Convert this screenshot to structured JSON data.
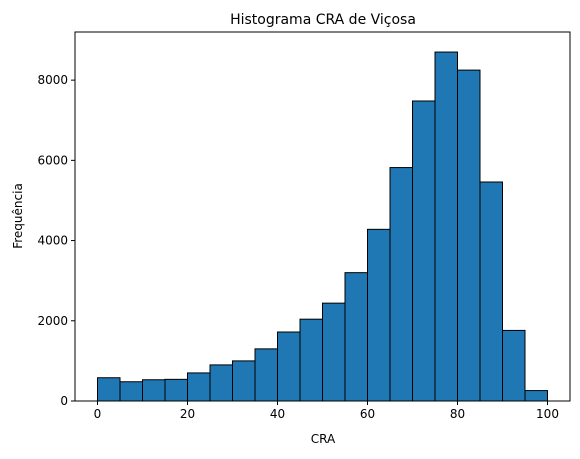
{
  "chart_data": {
    "type": "bar",
    "title": "Histograma CRA de Viçosa",
    "xlabel": "CRA",
    "ylabel": "Frequência",
    "bin_edges": [
      0,
      5,
      10,
      15,
      20,
      25,
      30,
      35,
      40,
      45,
      50,
      55,
      60,
      65,
      70,
      75,
      80,
      85,
      90,
      95,
      100
    ],
    "values": [
      580,
      480,
      530,
      540,
      700,
      900,
      1000,
      1300,
      1720,
      2040,
      2440,
      3200,
      4280,
      5820,
      7480,
      8700,
      8250,
      5460,
      1760,
      260
    ],
    "xlim": [
      -5,
      105
    ],
    "ylim": [
      0,
      9200
    ],
    "xticks": [
      0,
      20,
      40,
      60,
      80,
      100
    ],
    "yticks": [
      0,
      2000,
      4000,
      6000,
      8000
    ],
    "grid": false,
    "legend": "none",
    "colors": {
      "bar_fill": "#1f77b4",
      "bar_edge": "#000000",
      "axis": "#000000"
    }
  }
}
